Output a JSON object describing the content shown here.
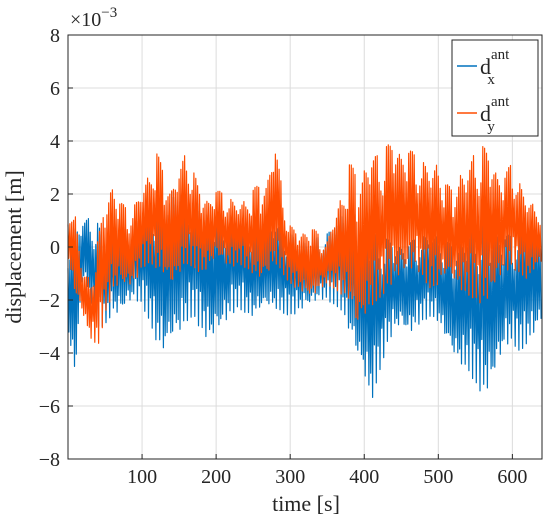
{
  "chart_data": {
    "type": "line",
    "xlabel": "time [s]",
    "ylabel": "displacement [m]",
    "y_multiplier_label": "×10",
    "y_multiplier_exponent": "−3",
    "xlim": [
      0,
      640
    ],
    "ylim": [
      -8,
      8
    ],
    "x_ticks": [
      100,
      200,
      300,
      400,
      500,
      600
    ],
    "x_tick_labels": [
      "100",
      "200",
      "300",
      "400",
      "500",
      "600"
    ],
    "y_ticks": [
      -8,
      -6,
      -4,
      -2,
      0,
      2,
      4,
      6,
      8
    ],
    "y_tick_labels": [
      "−8",
      "−6",
      "−4",
      "−2",
      "0",
      "2",
      "4",
      "6",
      "8"
    ],
    "grid": true,
    "legend_position": "top-right",
    "legend": [
      {
        "base": "d",
        "sub": "x",
        "sup": "ant",
        "color": "#0072BD"
      },
      {
        "base": "d",
        "sub": "y",
        "sup": "ant",
        "color": "#FF4D00"
      }
    ],
    "series": [
      {
        "id": "dx",
        "color": "#0072BD",
        "x": [
          0,
          10,
          20,
          30,
          40,
          50,
          60,
          70,
          80,
          90,
          100,
          110,
          120,
          130,
          140,
          150,
          160,
          170,
          180,
          190,
          200,
          210,
          220,
          230,
          240,
          250,
          260,
          270,
          280,
          290,
          300,
          310,
          320,
          330,
          340,
          350,
          360,
          370,
          380,
          390,
          400,
          410,
          420,
          430,
          440,
          450,
          460,
          470,
          480,
          490,
          500,
          510,
          520,
          530,
          540,
          550,
          560,
          570,
          580,
          590,
          600,
          610,
          620,
          630,
          640
        ],
        "upper": [
          0.5,
          0.8,
          1.0,
          1.1,
          0.9,
          0.2,
          0.5,
          0.9,
          0.6,
          1.0,
          1.2,
          1.6,
          1.9,
          2.1,
          2.2,
          2.3,
          2.1,
          1.9,
          1.6,
          1.4,
          1.5,
          1.3,
          1.2,
          1.1,
          1.0,
          0.8,
          0.9,
          1.0,
          0.9,
          0.7,
          0.5,
          0.4,
          0.3,
          0.3,
          0.4,
          0.5,
          1.0,
          1.6,
          1.9,
          1.2,
          0.8,
          0.6,
          0.5,
          0.3,
          0.2,
          0.1,
          0.2,
          0.3,
          0.4,
          0.5,
          0.4,
          0.2,
          0.1,
          0.2,
          0.5,
          0.8,
          1.0,
          0.9,
          0.7,
          0.5,
          0.4,
          0.6,
          0.8,
          1.0,
          1.2
        ],
        "lower": [
          -3.5,
          -4.8,
          -1.0,
          -2.0,
          -3.0,
          -3.0,
          -2.5,
          -2.6,
          -2.2,
          -2.0,
          -2.2,
          -2.8,
          -3.6,
          -3.9,
          -3.4,
          -3.2,
          -2.8,
          -2.6,
          -3.2,
          -3.6,
          -3.4,
          -3.0,
          -2.6,
          -2.3,
          -2.5,
          -2.6,
          -2.3,
          -2.2,
          -2.3,
          -2.5,
          -2.6,
          -2.5,
          -2.3,
          -2.2,
          -2.0,
          -2.0,
          -2.2,
          -2.4,
          -3.2,
          -4.0,
          -4.8,
          -5.8,
          -4.8,
          -3.8,
          -3.2,
          -3.0,
          -3.4,
          -3.0,
          -2.8,
          -2.6,
          -2.8,
          -3.4,
          -4.0,
          -4.4,
          -4.6,
          -5.2,
          -5.6,
          -5.4,
          -4.6,
          -3.8,
          -3.6,
          -4.0,
          -3.6,
          -3.2,
          -2.8
        ]
      },
      {
        "id": "dy",
        "color": "#FF4D00",
        "x": [
          0,
          10,
          20,
          30,
          40,
          50,
          60,
          70,
          80,
          90,
          100,
          110,
          120,
          130,
          140,
          150,
          160,
          170,
          180,
          190,
          200,
          210,
          220,
          230,
          240,
          250,
          260,
          270,
          280,
          290,
          300,
          310,
          320,
          330,
          340,
          350,
          360,
          370,
          380,
          390,
          400,
          410,
          420,
          430,
          440,
          450,
          460,
          470,
          480,
          490,
          500,
          510,
          520,
          530,
          540,
          550,
          560,
          570,
          580,
          590,
          600,
          610,
          620,
          630,
          640
        ],
        "upper": [
          1.5,
          1.2,
          -1.0,
          -1.2,
          0.2,
          1.8,
          2.4,
          1.8,
          1.4,
          1.6,
          2.2,
          2.8,
          3.6,
          2.8,
          2.2,
          3.0,
          3.6,
          2.8,
          2.0,
          1.8,
          2.2,
          2.0,
          1.8,
          1.6,
          1.8,
          2.2,
          2.4,
          2.6,
          4.0,
          2.0,
          0.8,
          0.6,
          0.6,
          0.8,
          0.4,
          0.2,
          1.2,
          2.0,
          3.2,
          2.8,
          3.0,
          3.6,
          3.4,
          3.8,
          4.1,
          3.6,
          3.8,
          3.4,
          3.2,
          3.0,
          3.2,
          2.4,
          2.2,
          2.8,
          3.0,
          3.6,
          3.8,
          3.6,
          2.8,
          2.8,
          3.2,
          2.4,
          1.8,
          1.6,
          1.4
        ],
        "lower": [
          -0.5,
          -1.8,
          -2.5,
          -3.4,
          -3.8,
          -2.6,
          -1.8,
          -1.4,
          -1.6,
          -1.4,
          -0.8,
          -0.6,
          -0.8,
          -1.0,
          -1.4,
          -1.0,
          -0.6,
          -0.8,
          -1.0,
          -0.8,
          -0.4,
          -0.6,
          -0.8,
          -0.6,
          -0.8,
          -1.0,
          -1.2,
          -1.0,
          -0.6,
          -1.0,
          -1.4,
          -1.6,
          -1.8,
          -2.0,
          -1.6,
          -1.4,
          -1.6,
          -1.8,
          -2.0,
          -3.0,
          -2.6,
          -2.2,
          -2.0,
          -1.6,
          -1.4,
          -1.2,
          -1.0,
          -0.8,
          -1.2,
          -1.6,
          -1.4,
          -1.0,
          -1.2,
          -1.6,
          -1.8,
          -2.0,
          -2.2,
          -2.0,
          -1.4,
          -1.0,
          -0.8,
          -1.0,
          -1.2,
          -0.8,
          -0.6
        ]
      }
    ]
  }
}
